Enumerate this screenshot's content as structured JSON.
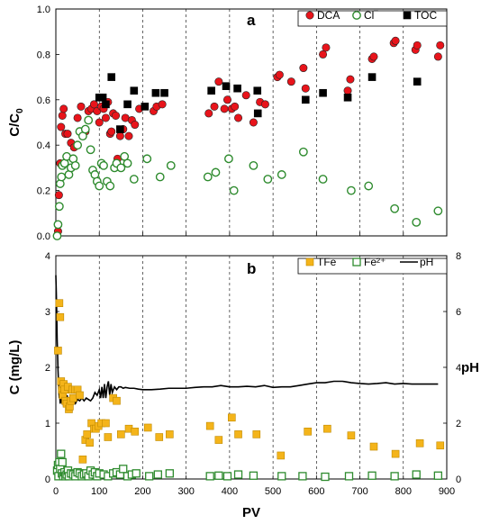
{
  "chart_data": [
    {
      "type": "scatter",
      "panel_label": "a",
      "ylabel_main": "C/C",
      "ylabel_sub": "0",
      "xlim": [
        0,
        900
      ],
      "ylim": [
        0,
        1.0
      ],
      "xticks": [
        "0",
        "100",
        "200",
        "300",
        "400",
        "500",
        "600",
        "700",
        "800",
        "900"
      ],
      "yticks": [
        "0.0",
        "0.2",
        "0.4",
        "0.6",
        "0.8",
        "1.0"
      ],
      "grid": "vertical",
      "legend_placement": "top-right",
      "series": [
        {
          "name": "DCA",
          "marker": "filled-circle",
          "color": "#e8141b",
          "x": [
            5,
            7,
            10,
            12,
            15,
            18,
            22,
            27,
            35,
            42,
            50,
            58,
            68,
            75,
            82,
            88,
            95,
            100,
            105,
            110,
            115,
            120,
            125,
            128,
            132,
            138,
            142,
            148,
            155,
            160,
            168,
            175,
            182,
            192,
            225,
            232,
            245,
            352,
            365,
            375,
            388,
            395,
            405,
            412,
            420,
            438,
            455,
            470,
            482,
            510,
            515,
            542,
            570,
            575,
            615,
            622,
            672,
            678,
            728,
            732,
            778,
            782,
            828,
            832,
            880,
            885
          ],
          "y": [
            0.02,
            0.18,
            0.32,
            0.48,
            0.53,
            0.56,
            0.45,
            0.45,
            0.41,
            0.39,
            0.52,
            0.57,
            0.46,
            0.55,
            0.56,
            0.58,
            0.55,
            0.5,
            0.57,
            0.56,
            0.52,
            0.59,
            0.45,
            0.46,
            0.54,
            0.53,
            0.34,
            0.44,
            0.47,
            0.52,
            0.44,
            0.51,
            0.49,
            0.56,
            0.55,
            0.57,
            0.58,
            0.54,
            0.57,
            0.68,
            0.56,
            0.6,
            0.56,
            0.57,
            0.52,
            0.62,
            0.5,
            0.59,
            0.58,
            0.7,
            0.71,
            0.68,
            0.74,
            0.65,
            0.8,
            0.83,
            0.64,
            0.69,
            0.78,
            0.79,
            0.85,
            0.86,
            0.82,
            0.84,
            0.79,
            0.84
          ]
        },
        {
          "name": "Cl‾",
          "marker": "open-circle",
          "color": "#2e8b2e",
          "x": [
            3,
            5,
            8,
            10,
            13,
            15,
            20,
            25,
            30,
            35,
            40,
            45,
            50,
            55,
            62,
            68,
            75,
            80,
            85,
            90,
            95,
            100,
            105,
            110,
            118,
            125,
            135,
            140,
            150,
            158,
            165,
            180,
            210,
            240,
            265,
            350,
            368,
            398,
            410,
            455,
            488,
            520,
            570,
            615,
            680,
            720,
            780,
            830,
            880
          ],
          "y": [
            0.0,
            0.05,
            0.13,
            0.23,
            0.26,
            0.31,
            0.32,
            0.35,
            0.27,
            0.3,
            0.34,
            0.31,
            0.4,
            0.46,
            0.44,
            0.47,
            0.51,
            0.38,
            0.29,
            0.27,
            0.24,
            0.22,
            0.32,
            0.31,
            0.24,
            0.22,
            0.3,
            0.32,
            0.3,
            0.35,
            0.32,
            0.25,
            0.34,
            0.26,
            0.31,
            0.26,
            0.28,
            0.34,
            0.2,
            0.31,
            0.25,
            0.27,
            0.37,
            0.25,
            0.2,
            0.22,
            0.12,
            0.06,
            0.11
          ]
        },
        {
          "name": "TOC",
          "marker": "filled-square",
          "color": "#000000",
          "x": [
            100,
            108,
            115,
            128,
            148,
            165,
            180,
            205,
            230,
            250,
            358,
            392,
            418,
            464,
            465,
            575,
            615,
            672,
            728,
            832
          ],
          "y": [
            0.61,
            0.61,
            0.58,
            0.7,
            0.47,
            0.58,
            0.64,
            0.57,
            0.63,
            0.63,
            0.64,
            0.66,
            0.65,
            0.64,
            0.54,
            0.6,
            0.63,
            0.61,
            0.7,
            0.68
          ]
        }
      ]
    },
    {
      "type": "scatter",
      "panel_label": "b",
      "xlabel": "PV",
      "ylabel": "C (mg/L)",
      "ylabel_right": "pH",
      "xlim": [
        0,
        900
      ],
      "ylim": [
        0,
        4
      ],
      "ylim_right": [
        0,
        8
      ],
      "xticks": [
        "0",
        "100",
        "200",
        "300",
        "400",
        "500",
        "600",
        "700",
        "800",
        "900"
      ],
      "yticks": [
        "0",
        "1",
        "2",
        "3",
        "4"
      ],
      "yticks_right": [
        "0",
        "2",
        "4",
        "6",
        "8"
      ],
      "grid": "vertical",
      "legend_placement": "top-right",
      "series": [
        {
          "name": "TFe",
          "marker": "filled-square",
          "color": "#f4b41a",
          "x": [
            5,
            8,
            10,
            12,
            14,
            16,
            18,
            20,
            22,
            25,
            28,
            30,
            32,
            35,
            38,
            40,
            45,
            50,
            55,
            62,
            68,
            72,
            78,
            82,
            88,
            92,
            98,
            105,
            115,
            120,
            132,
            140,
            150,
            168,
            182,
            212,
            238,
            262,
            355,
            375,
            405,
            420,
            462,
            518,
            580,
            625,
            680,
            732,
            782,
            838,
            885
          ],
          "y": [
            2.3,
            3.15,
            2.9,
            1.75,
            1.6,
            1.5,
            1.7,
            1.6,
            1.4,
            1.35,
            1.65,
            1.25,
            1.3,
            1.4,
            1.6,
            1.45,
            1.6,
            1.6,
            1.5,
            0.35,
            0.7,
            0.8,
            0.65,
            1.0,
            0.9,
            0.9,
            0.95,
            1.0,
            1.0,
            0.75,
            1.45,
            1.4,
            0.8,
            0.9,
            0.85,
            0.92,
            0.75,
            0.8,
            0.95,
            0.7,
            1.1,
            0.8,
            0.8,
            0.42,
            0.85,
            0.9,
            0.78,
            0.58,
            0.45,
            0.64,
            0.6
          ]
        },
        {
          "name": "Fe²⁺",
          "marker": "open-square",
          "color": "#2e8b2e",
          "x": [
            3,
            5,
            6,
            8,
            10,
            12,
            14,
            15,
            17,
            20,
            22,
            25,
            28,
            30,
            35,
            40,
            45,
            50,
            55,
            60,
            65,
            70,
            75,
            80,
            85,
            90,
            95,
            100,
            110,
            120,
            132,
            140,
            148,
            155,
            165,
            175,
            185,
            215,
            235,
            262,
            355,
            375,
            395,
            420,
            455,
            520,
            568,
            620,
            675,
            728,
            780,
            830,
            880
          ],
          "y": [
            0.15,
            0.25,
            0.05,
            0.3,
            0.18,
            0.45,
            0.1,
            0.3,
            0.05,
            0.12,
            0.05,
            0.08,
            0.15,
            0.05,
            0.1,
            0.08,
            0.05,
            0.12,
            0.1,
            0.05,
            0.08,
            0.1,
            0.05,
            0.15,
            0.08,
            0.12,
            0.05,
            0.1,
            0.08,
            0.05,
            0.1,
            0.12,
            0.08,
            0.18,
            0.05,
            0.08,
            0.1,
            0.05,
            0.08,
            0.1,
            0.05,
            0.06,
            0.05,
            0.08,
            0.06,
            0.05,
            0.05,
            0.04,
            0.05,
            0.06,
            0.05,
            0.08,
            0.06
          ]
        },
        {
          "name": "pH",
          "type": "line",
          "color": "#000000",
          "axis": "right",
          "x": [
            0,
            1,
            2,
            3,
            4,
            5,
            6,
            7,
            8,
            9,
            10,
            11,
            12,
            13,
            14,
            15,
            16,
            17,
            18,
            20,
            22,
            24,
            26,
            28,
            30,
            35,
            40,
            45,
            50,
            55,
            60,
            65,
            70,
            75,
            80,
            85,
            90,
            95,
            100,
            103,
            106,
            109,
            112,
            115,
            118,
            121,
            124,
            127,
            130,
            135,
            140,
            145,
            150,
            155,
            160,
            170,
            180,
            190,
            200,
            220,
            240,
            260,
            280,
            300,
            320,
            340,
            360,
            380,
            400,
            420,
            440,
            460,
            480,
            500,
            520,
            540,
            560,
            580,
            600,
            620,
            640,
            660,
            680,
            700,
            720,
            740,
            760,
            780,
            800,
            820,
            840,
            860,
            880
          ],
          "y": [
            7.3,
            6.7,
            6.0,
            5.0,
            4.5,
            3.9,
            3.5,
            3.1,
            2.9,
            3.0,
            2.7,
            2.9,
            3.3,
            3.0,
            2.7,
            2.9,
            3.4,
            2.8,
            2.6,
            2.8,
            2.6,
            2.9,
            3.0,
            2.7,
            2.8,
            2.9,
            2.8,
            2.7,
            2.85,
            2.8,
            2.9,
            2.8,
            2.9,
            2.85,
            2.8,
            2.9,
            3.1,
            3.0,
            3.2,
            2.9,
            3.3,
            2.9,
            3.4,
            2.9,
            3.3,
            3.5,
            3.0,
            3.4,
            3.1,
            3.3,
            3.2,
            3.3,
            3.3,
            3.25,
            3.28,
            3.25,
            3.25,
            3.22,
            3.2,
            3.2,
            3.22,
            3.25,
            3.25,
            3.25,
            3.28,
            3.3,
            3.3,
            3.35,
            3.3,
            3.3,
            3.32,
            3.3,
            3.35,
            3.28,
            3.3,
            3.3,
            3.35,
            3.4,
            3.45,
            3.45,
            3.5,
            3.5,
            3.45,
            3.42,
            3.4,
            3.42,
            3.45,
            3.4,
            3.42,
            3.4,
            3.4,
            3.4,
            3.4
          ]
        }
      ]
    }
  ]
}
